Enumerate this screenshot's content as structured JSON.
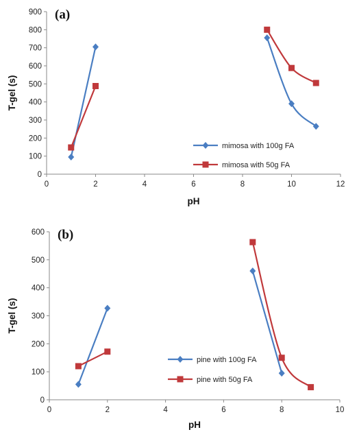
{
  "chart_data": [
    {
      "type": "line",
      "panel_label": "(a)",
      "xlabel": "pH",
      "ylabel": "T-gel (s)",
      "xlim": [
        0,
        12
      ],
      "ylim": [
        0,
        900
      ],
      "xticks": [
        0,
        2,
        4,
        6,
        8,
        10,
        12
      ],
      "yticks": [
        0,
        100,
        200,
        300,
        400,
        500,
        600,
        700,
        800,
        900
      ],
      "grid": false,
      "legend_position": "lower-right",
      "series": [
        {
          "name": "mimosa with 100g FA",
          "color": "#4a7ec2",
          "marker": "diamond",
          "segments": [
            [
              [
                1,
                95
              ],
              [
                2,
                705
              ]
            ],
            [
              [
                9,
                755
              ],
              [
                10,
                390
              ],
              [
                11,
                265
              ]
            ]
          ]
        },
        {
          "name": "mimosa with 50g FA",
          "color": "#c0393b",
          "marker": "square",
          "segments": [
            [
              [
                1,
                148
              ],
              [
                2,
                488
              ]
            ],
            [
              [
                9,
                800
              ],
              [
                10,
                588
              ],
              [
                11,
                505
              ]
            ]
          ]
        }
      ]
    },
    {
      "type": "line",
      "panel_label": "(b)",
      "xlabel": "pH",
      "ylabel": "T-gel (s)",
      "xlim": [
        0,
        10
      ],
      "ylim": [
        0,
        600
      ],
      "xticks": [
        0,
        2,
        4,
        6,
        8,
        10
      ],
      "yticks": [
        0,
        100,
        200,
        300,
        400,
        500,
        600
      ],
      "grid": false,
      "legend_position": "lower-center",
      "series": [
        {
          "name": "pine with 100g FA",
          "color": "#4a7ec2",
          "marker": "diamond",
          "segments": [
            [
              [
                1,
                55
              ],
              [
                2,
                327
              ]
            ],
            [
              [
                7,
                460
              ],
              [
                8,
                95
              ]
            ]
          ]
        },
        {
          "name": "pine with 50g FA",
          "color": "#c0393b",
          "marker": "square",
          "segments": [
            [
              [
                1,
                120
              ],
              [
                2,
                172
              ]
            ],
            [
              [
                7,
                563
              ],
              [
                8,
                150
              ],
              [
                9,
                45
              ]
            ]
          ]
        }
      ]
    }
  ]
}
